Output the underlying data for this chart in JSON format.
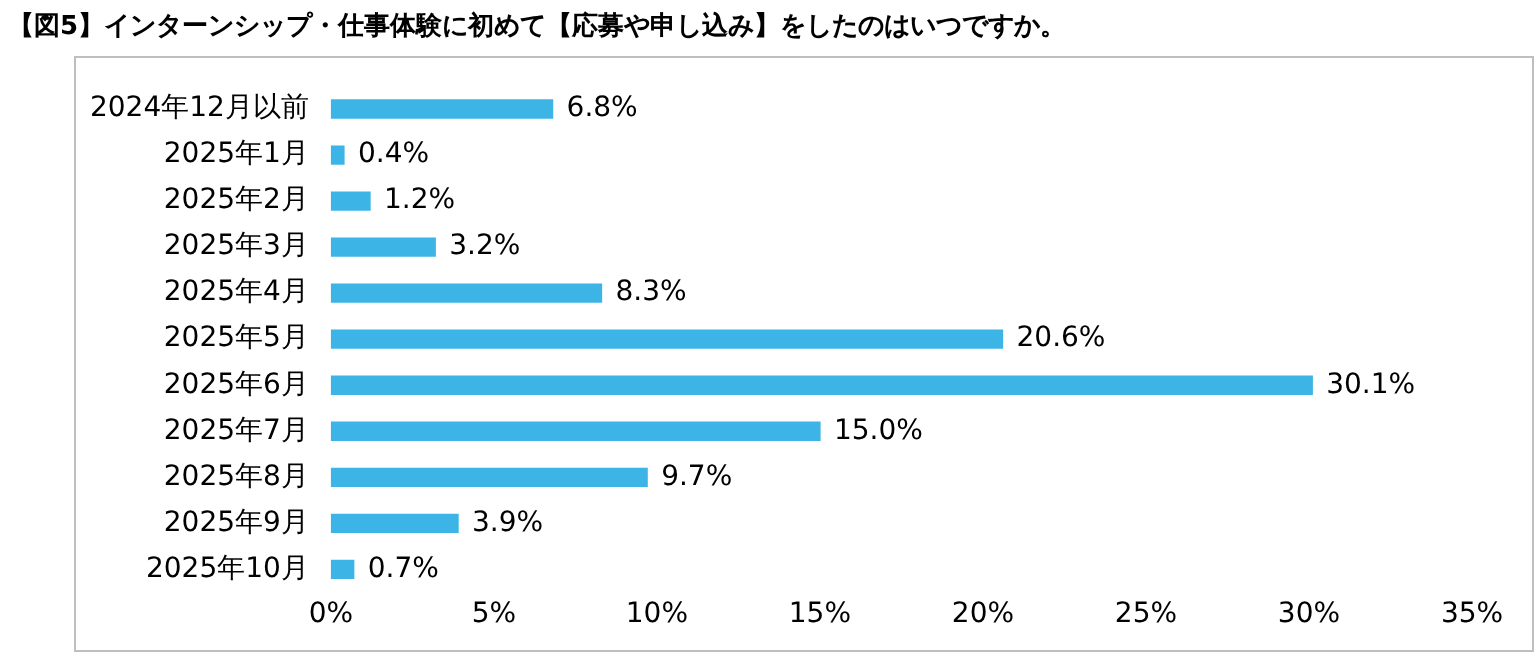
{
  "chart_data": {
    "type": "bar",
    "orientation": "horizontal",
    "title": "【図5】インターンシップ・仕事体験に初めて【応募や申し込み】をしたのはいつですか。",
    "categories": [
      "2024年12月以前",
      "2025年1月",
      "2025年2月",
      "2025年3月",
      "2025年4月",
      "2025年5月",
      "2025年6月",
      "2025年7月",
      "2025年8月",
      "2025年9月",
      "2025年10月"
    ],
    "values": [
      6.8,
      0.4,
      1.2,
      3.2,
      8.3,
      20.6,
      30.1,
      15.0,
      9.7,
      3.9,
      0.7
    ],
    "value_labels": [
      "6.8%",
      "0.4%",
      "1.2%",
      "3.2%",
      "8.3%",
      "20.6%",
      "30.1%",
      "15.0%",
      "9.7%",
      "3.9%",
      "0.7%"
    ],
    "color": "#3cb4e6",
    "xlim": [
      0,
      35
    ],
    "xticks": [
      {
        "value": 0,
        "label": "0%"
      },
      {
        "value": 5,
        "label": "5%"
      },
      {
        "value": 10,
        "label": "10%"
      },
      {
        "value": 15,
        "label": "15%"
      },
      {
        "value": 20,
        "label": "20%"
      },
      {
        "value": 25,
        "label": "25%"
      },
      {
        "value": 30,
        "label": "30%"
      },
      {
        "value": 35,
        "label": "35%"
      }
    ],
    "grid": false,
    "legend": false
  }
}
